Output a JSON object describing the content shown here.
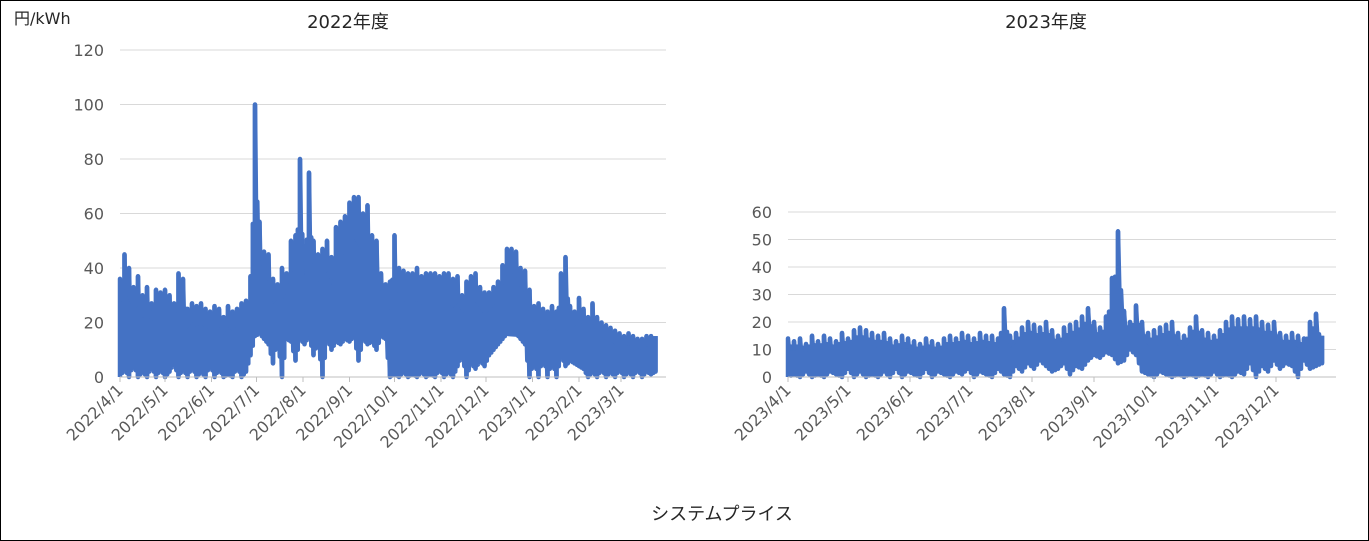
{
  "unit_label": "円/kWh",
  "caption": "システムプライス",
  "chart_data": [
    {
      "type": "line",
      "title": "2022年度",
      "ylabel": "円/kWh",
      "xlabel": "",
      "ylim": [
        0,
        120
      ],
      "yticks": [
        0,
        20,
        40,
        60,
        80,
        100,
        120
      ],
      "xlim": [
        "2022/4/1",
        "2023/3/31"
      ],
      "xticks": [
        "2022/4/1",
        "2022/5/1",
        "2022/6/1",
        "2022/7/1",
        "2022/8/1",
        "2022/9/1",
        "2022/10/1",
        "2022/11/1",
        "2022/12/1",
        "2023/1/1",
        "2023/2/1",
        "2023/3/1"
      ],
      "grid": true,
      "color": "#4472c4",
      "series": [
        {
          "x": [
            "2022/4/1",
            "2022/4/4",
            "2022/4/7",
            "2022/4/10",
            "2022/4/13",
            "2022/4/16",
            "2022/4/19",
            "2022/4/22",
            "2022/4/25",
            "2022/4/28",
            "2022/5/1",
            "2022/5/4",
            "2022/5/7",
            "2022/5/10",
            "2022/5/13",
            "2022/5/16",
            "2022/5/19",
            "2022/5/22",
            "2022/5/25",
            "2022/5/28",
            "2022/5/31",
            "2022/6/3",
            "2022/6/6",
            "2022/6/9",
            "2022/6/12",
            "2022/6/15",
            "2022/6/18",
            "2022/6/21",
            "2022/6/24",
            "2022/6/27",
            "2022/6/30",
            "2022/7/3",
            "2022/7/6",
            "2022/7/9",
            "2022/7/12",
            "2022/7/15",
            "2022/7/18",
            "2022/7/21",
            "2022/7/24",
            "2022/7/27",
            "2022/7/30",
            "2022/8/2",
            "2022/8/5",
            "2022/8/8",
            "2022/8/11",
            "2022/8/14",
            "2022/8/17",
            "2022/8/20",
            "2022/8/23",
            "2022/8/26",
            "2022/8/29",
            "2022/9/1",
            "2022/9/4",
            "2022/9/7",
            "2022/9/10",
            "2022/9/13",
            "2022/9/16",
            "2022/9/19",
            "2022/9/22",
            "2022/9/25",
            "2022/9/28",
            "2022/10/1",
            "2022/10/4",
            "2022/10/7",
            "2022/10/10",
            "2022/10/13",
            "2022/10/16",
            "2022/10/19",
            "2022/10/22",
            "2022/10/25",
            "2022/10/28",
            "2022/10/31",
            "2022/11/3",
            "2022/11/6",
            "2022/11/9",
            "2022/11/12",
            "2022/11/15",
            "2022/11/18",
            "2022/11/21",
            "2022/11/24",
            "2022/11/27",
            "2022/11/30",
            "2022/12/3",
            "2022/12/6",
            "2022/12/9",
            "2022/12/12",
            "2022/12/15",
            "2022/12/18",
            "2022/12/21",
            "2022/12/24",
            "2022/12/27",
            "2022/12/30",
            "2023/1/2",
            "2023/1/5",
            "2023/1/8",
            "2023/1/11",
            "2023/1/14",
            "2023/1/17",
            "2023/1/20",
            "2023/1/23",
            "2023/1/26",
            "2023/1/29",
            "2023/2/1",
            "2023/2/4",
            "2023/2/7",
            "2023/2/10",
            "2023/2/13",
            "2023/2/16",
            "2023/2/19",
            "2023/2/22",
            "2023/2/25",
            "2023/2/28",
            "2023/3/3",
            "2023/3/6",
            "2023/3/9",
            "2023/3/12",
            "2023/3/15",
            "2023/3/18",
            "2023/3/21",
            "2023/3/24",
            "2023/3/27",
            "2023/3/31"
          ],
          "min": [
            0,
            3,
            0,
            5,
            0,
            2,
            0,
            4,
            0,
            3,
            0,
            2,
            5,
            0,
            3,
            0,
            4,
            0,
            2,
            0,
            5,
            0,
            3,
            0,
            1,
            0,
            4,
            0,
            2,
            8,
            15,
            16,
            14,
            12,
            5,
            15,
            0,
            14,
            13,
            6,
            14,
            12,
            15,
            8,
            13,
            0,
            14,
            10,
            13,
            12,
            14,
            13,
            15,
            6,
            14,
            12,
            13,
            10,
            15,
            14,
            0,
            1,
            0,
            2,
            0,
            1,
            0,
            2,
            0,
            1,
            0,
            3,
            0,
            2,
            0,
            4,
            8,
            0,
            5,
            3,
            6,
            4,
            8,
            10,
            12,
            14,
            16,
            18,
            16,
            14,
            12,
            0,
            6,
            0,
            8,
            0,
            6,
            0,
            8,
            4,
            6,
            5,
            4,
            3,
            0,
            2,
            0,
            3,
            0,
            2,
            0,
            3,
            0,
            2,
            0,
            3,
            0,
            2,
            1,
            2
          ],
          "max": [
            36,
            45,
            40,
            33,
            37,
            30,
            33,
            27,
            32,
            31,
            32,
            30,
            27,
            38,
            36,
            25,
            27,
            26,
            27,
            25,
            24,
            26,
            25,
            22,
            26,
            24,
            25,
            27,
            28,
            37,
            100,
            57,
            46,
            45,
            36,
            34,
            40,
            38,
            50,
            52,
            80,
            48,
            75,
            50,
            45,
            47,
            50,
            44,
            55,
            57,
            59,
            64,
            66,
            66,
            60,
            63,
            52,
            50,
            38,
            34,
            35,
            52,
            40,
            39,
            38,
            38,
            40,
            37,
            38,
            38,
            38,
            37,
            38,
            38,
            36,
            37,
            30,
            35,
            37,
            38,
            33,
            31,
            31,
            33,
            35,
            41,
            47,
            47,
            46,
            40,
            39,
            32,
            26,
            27,
            25,
            24,
            26,
            24,
            38,
            44,
            26,
            24,
            29,
            25,
            22,
            27,
            22,
            20,
            19,
            18,
            17,
            16,
            15,
            16,
            15,
            14,
            14,
            15,
            15,
            15
          ]
        }
      ]
    },
    {
      "type": "line",
      "title": "2023年度",
      "ylabel": "",
      "xlabel": "",
      "ylim": [
        0,
        60
      ],
      "yticks": [
        0,
        10,
        20,
        30,
        40,
        50,
        60
      ],
      "xlim": [
        "2023/4/1",
        "2023/12/31"
      ],
      "xticks": [
        "2023/4/1",
        "2023/5/1",
        "2023/6/1",
        "2023/7/1",
        "2023/8/1",
        "2023/9/1",
        "2023/10/1",
        "2023/11/1",
        "2023/12/1"
      ],
      "grid": true,
      "color": "#4472c4",
      "series": [
        {
          "x": [
            "2023/4/1",
            "2023/4/4",
            "2023/4/7",
            "2023/4/10",
            "2023/4/13",
            "2023/4/16",
            "2023/4/19",
            "2023/4/22",
            "2023/4/25",
            "2023/4/28",
            "2023/5/1",
            "2023/5/4",
            "2023/5/7",
            "2023/5/10",
            "2023/5/13",
            "2023/5/16",
            "2023/5/19",
            "2023/5/22",
            "2023/5/25",
            "2023/5/28",
            "2023/5/31",
            "2023/6/3",
            "2023/6/6",
            "2023/6/9",
            "2023/6/12",
            "2023/6/15",
            "2023/6/18",
            "2023/6/21",
            "2023/6/24",
            "2023/6/27",
            "2023/6/30",
            "2023/7/3",
            "2023/7/6",
            "2023/7/9",
            "2023/7/12",
            "2023/7/15",
            "2023/7/18",
            "2023/7/21",
            "2023/7/24",
            "2023/7/27",
            "2023/7/30",
            "2023/8/2",
            "2023/8/5",
            "2023/8/8",
            "2023/8/11",
            "2023/8/14",
            "2023/8/17",
            "2023/8/20",
            "2023/8/23",
            "2023/8/26",
            "2023/8/29",
            "2023/9/1",
            "2023/9/4",
            "2023/9/7",
            "2023/9/10",
            "2023/9/13",
            "2023/9/16",
            "2023/9/19",
            "2023/9/22",
            "2023/9/25",
            "2023/9/28",
            "2023/10/1",
            "2023/10/4",
            "2023/10/7",
            "2023/10/10",
            "2023/10/13",
            "2023/10/16",
            "2023/10/19",
            "2023/10/22",
            "2023/10/25",
            "2023/10/28",
            "2023/10/31",
            "2023/11/3",
            "2023/11/6",
            "2023/11/9",
            "2023/11/12",
            "2023/11/15",
            "2023/11/18",
            "2023/11/21",
            "2023/11/24",
            "2023/11/27",
            "2023/11/30",
            "2023/12/3",
            "2023/12/6",
            "2023/12/9",
            "2023/12/12",
            "2023/12/15",
            "2023/12/18",
            "2023/12/21",
            "2023/12/24",
            "2023/12/27",
            "2023/12/31"
          ],
          "min": [
            0,
            1,
            0,
            2,
            0,
            1,
            0,
            2,
            1,
            0,
            3,
            0,
            2,
            0,
            1,
            0,
            2,
            0,
            3,
            0,
            2,
            1,
            0,
            3,
            0,
            2,
            1,
            0,
            2,
            1,
            3,
            0,
            2,
            1,
            0,
            3,
            1,
            0,
            4,
            2,
            5,
            3,
            6,
            4,
            2,
            3,
            5,
            1,
            4,
            3,
            6,
            8,
            7,
            9,
            8,
            5,
            6,
            10,
            8,
            2,
            1,
            0,
            2,
            1,
            0,
            1,
            0,
            1,
            0,
            1,
            0,
            2,
            0,
            1,
            0,
            2,
            1,
            5,
            0,
            4,
            2,
            6,
            3,
            5,
            4,
            0,
            6,
            3,
            4,
            5
          ],
          "max": [
            14,
            13,
            14,
            12,
            15,
            13,
            15,
            14,
            13,
            16,
            14,
            17,
            18,
            17,
            16,
            15,
            16,
            14,
            13,
            15,
            14,
            13,
            12,
            14,
            13,
            12,
            14,
            15,
            14,
            16,
            15,
            14,
            16,
            15,
            15,
            14,
            25,
            15,
            16,
            18,
            20,
            19,
            18,
            20,
            17,
            15,
            18,
            19,
            20,
            22,
            25,
            20,
            18,
            22,
            36,
            53,
            24,
            20,
            26,
            20,
            16,
            17,
            18,
            19,
            20,
            16,
            15,
            18,
            22,
            17,
            16,
            15,
            17,
            20,
            22,
            21,
            22,
            21,
            22,
            20,
            19,
            20,
            16,
            15,
            16,
            15,
            14,
            20,
            23,
            15
          ]
        }
      ]
    }
  ]
}
